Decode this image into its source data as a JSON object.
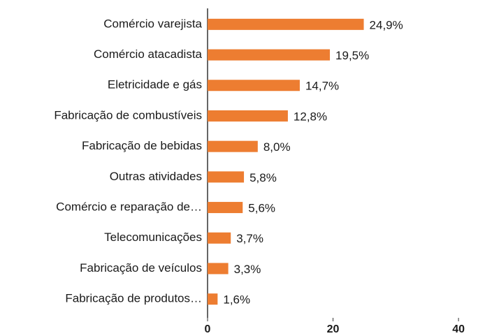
{
  "chart_data": {
    "type": "bar",
    "orientation": "horizontal",
    "categories": [
      "Comércio varejista",
      "Comércio atacadista",
      "Eletricidade e gás",
      "Fabricação de combustíveis",
      "Fabricação de bebidas",
      "Outras atividades",
      "Comércio e reparação de…",
      "Telecomunicações",
      "Fabricação de veículos",
      "Fabricação de produtos…"
    ],
    "values": [
      24.9,
      19.5,
      14.7,
      12.8,
      8.0,
      5.8,
      5.6,
      3.7,
      3.3,
      1.6
    ],
    "value_labels": [
      "24,9%",
      "19,5%",
      "14,7%",
      "12,8%",
      "8,0%",
      "5,8%",
      "5,6%",
      "3,7%",
      "3,3%",
      "1,6%"
    ],
    "color": "#ed7d31",
    "xlim": [
      0,
      44
    ],
    "xticks": [
      0,
      20,
      40
    ],
    "grid": false
  }
}
